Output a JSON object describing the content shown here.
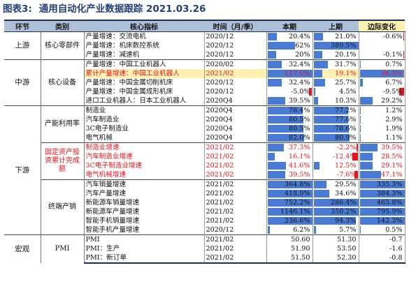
{
  "title": {
    "figure": "图表3:",
    "text": "通用自动化产业数据跟踪 2021.03.26"
  },
  "headers": {
    "segment": "环节",
    "category": "类别",
    "indicator": "核心指标",
    "time": "时间（月/季）",
    "current": "本期",
    "previous": "上期",
    "change": "边际变化"
  },
  "colors": {
    "bar_blue": "#4a7bd4",
    "bar_red": "#e8141a",
    "text_red": "#e8141a",
    "header_bg": "#aebfd8",
    "highlight_bg": "#fff2b0"
  },
  "segments": {
    "upstream": "上游",
    "midstream": "中游",
    "downstream": "下游",
    "macro": "宏观"
  },
  "groups": {
    "core_parts": "核心零部件",
    "core_equipment": "核心设备",
    "capacity_util": "产能利用率",
    "fixed_asset": "固定资产投资累计完成额",
    "terminal_capacity": "终端产销",
    "pmi": "PMI"
  },
  "chart_data": {
    "type": "table",
    "columns": [
      "环节",
      "类别",
      "核心指标",
      "时间（月/季）",
      "本期",
      "上期",
      "边际变化"
    ],
    "rows": [
      {
        "indicator": "产量增速：交流电机",
        "time": "2020/12",
        "current": "20.4%",
        "previous": "21.0%",
        "change": "-0.6%",
        "cur_v": 20.4,
        "prev_v": 21.0,
        "chg_v": -0.6,
        "red": false
      },
      {
        "indicator": "产量增速：机床数控系统",
        "time": "2020/12",
        "current": "62%",
        "previous": "389.5%",
        "change": "",
        "cur_v": 62,
        "prev_v": 389.5,
        "chg_v": null,
        "red": false
      },
      {
        "indicator": "产量增速：减速机",
        "time": "2020/12",
        "current": "20%",
        "previous": "20.1%",
        "change": "-0.1%",
        "cur_v": 20,
        "prev_v": 20.1,
        "chg_v": -0.1,
        "red": false
      },
      {
        "indicator": "产量增速：中国工业机器人",
        "time": "2020/02",
        "current": "32.4%",
        "previous": "31.7%",
        "change": "0.7%",
        "cur_v": 32.4,
        "prev_v": 31.7,
        "chg_v": 0.7,
        "red": false
      },
      {
        "indicator": "累计产量增速：中国工业机器人",
        "time": "2021/02",
        "current": "117.6%",
        "previous": "19.1%",
        "change": "98.5%",
        "cur_v": 117.6,
        "prev_v": 19.1,
        "chg_v": 98.5,
        "red": true,
        "highlight": true
      },
      {
        "indicator": "产量增速：中国金属切削机床",
        "time": "2020/12",
        "current": "32.4%",
        "previous": "25.7%",
        "change": "6.7%",
        "cur_v": 32.4,
        "prev_v": 25.7,
        "chg_v": 6.7,
        "red": false
      },
      {
        "indicator": "产量增速：中国金属成形机床",
        "time": "2020/12",
        "current": "-5.0%",
        "previous": "4.5%",
        "change": "-9.5%",
        "cur_v": -5.0,
        "prev_v": 4.5,
        "chg_v": -9.5,
        "red": false
      },
      {
        "indicator": "进口工业机器人：日本工业机器人",
        "time": "2020Q4",
        "current": "39.5%",
        "previous": "10.3%",
        "change": "29.2%",
        "cur_v": 39.5,
        "prev_v": 10.3,
        "chg_v": 29.2,
        "red": false
      },
      {
        "indicator": "制造业",
        "time": "2020Q4",
        "current": "78.4%",
        "previous": "77.2%",
        "change": "1.2%",
        "cur_v": 78.4,
        "prev_v": 77.2,
        "chg_v": 1.2,
        "red": false
      },
      {
        "indicator": "汽车制造业",
        "time": "2020Q4",
        "current": "80.5%",
        "previous": "77.6%",
        "change": "2.9%",
        "cur_v": 80.5,
        "prev_v": 77.6,
        "chg_v": 2.9,
        "red": false
      },
      {
        "indicator": "3C电子制造业",
        "time": "2020Q4",
        "current": "80.5%",
        "previous": "78.6%",
        "change": "1.9%",
        "cur_v": 80.5,
        "prev_v": 78.6,
        "chg_v": 1.9,
        "red": false
      },
      {
        "indicator": "电气机械",
        "time": "2020Q4",
        "current": "82.0%",
        "previous": "80.9%",
        "change": "1.1%",
        "cur_v": 82.0,
        "prev_v": 80.9,
        "chg_v": 1.1,
        "red": false
      },
      {
        "indicator": "制造业增速",
        "time": "2021/02",
        "current": "37.3%",
        "previous": "-2.2%",
        "change": "39.5%",
        "cur_v": 37.3,
        "prev_v": -2.2,
        "chg_v": 39.5,
        "red": true
      },
      {
        "indicator": "汽车制造业增速",
        "time": "2021/02",
        "current": "16.1%",
        "previous": "-12.4%",
        "change": "28.5%",
        "cur_v": 16.1,
        "prev_v": -12.4,
        "chg_v": 28.5,
        "red": true
      },
      {
        "indicator": "3C电子制造业增速",
        "time": "2021/02",
        "current": "41.6%",
        "previous": "12.5%",
        "change": "29.1%",
        "cur_v": 41.6,
        "prev_v": 12.5,
        "chg_v": 29.1,
        "red": true
      },
      {
        "indicator": "电气机械增速",
        "time": "2021/02",
        "current": "39.5%",
        "previous": "-7.6%",
        "change": "47.1%",
        "cur_v": 39.5,
        "prev_v": -7.6,
        "chg_v": 47.1,
        "red": true
      },
      {
        "indicator": "汽车销量增速",
        "time": "2021/02",
        "current": "364.8%",
        "previous": "29.5%",
        "change": "335.3%",
        "cur_v": 364.8,
        "prev_v": 29.5,
        "chg_v": 335.3,
        "red": false
      },
      {
        "indicator": "汽车产量增速",
        "time": "2021/02",
        "current": "418.9%",
        "previous": "34.6%",
        "change": "384.3%",
        "cur_v": 418.9,
        "prev_v": 34.6,
        "chg_v": 384.3,
        "red": false
      },
      {
        "indicator": "新能源车销量增速",
        "time": "2021/02",
        "current": "752.2%",
        "previous": "286.4%",
        "change": "465.8%",
        "cur_v": 752.2,
        "prev_v": 286.4,
        "chg_v": 465.8,
        "red": false
      },
      {
        "indicator": "新能源车产量增速",
        "time": "2021/02",
        "current": "1146.1%",
        "previous": "350.2%",
        "change": "795.9%",
        "cur_v": 1146.1,
        "prev_v": 350.2,
        "chg_v": 795.9,
        "red": false
      },
      {
        "indicator": "智能手机销量增速",
        "time": "2021/02",
        "current": "236.6%",
        "previous": "94.3%",
        "change": "142.3%",
        "cur_v": 236.6,
        "prev_v": 94.3,
        "chg_v": 142.3,
        "red": false
      },
      {
        "indicator": "智能手机产量增速",
        "time": "2020/12",
        "current": "6.2%",
        "previous": "5.7%",
        "change": "0.5%",
        "cur_v": 6.2,
        "prev_v": 5.7,
        "chg_v": 0.5,
        "red": false
      },
      {
        "indicator": "PMI",
        "time": "2021/02",
        "current": "50.60",
        "previous": "51.30",
        "change": "-0.7",
        "cur_v": null,
        "prev_v": null,
        "chg_v": null,
        "red": false
      },
      {
        "indicator": "PMI：生产",
        "time": "2021/02",
        "current": "51.90",
        "previous": "53.50",
        "change": "-1.6",
        "cur_v": null,
        "prev_v": null,
        "chg_v": null,
        "red": false
      },
      {
        "indicator": "PMI：新订单",
        "time": "2021/02",
        "current": "51.50",
        "previous": "52.30",
        "change": "-0.8",
        "cur_v": null,
        "prev_v": null,
        "chg_v": null,
        "red": false
      }
    ]
  }
}
